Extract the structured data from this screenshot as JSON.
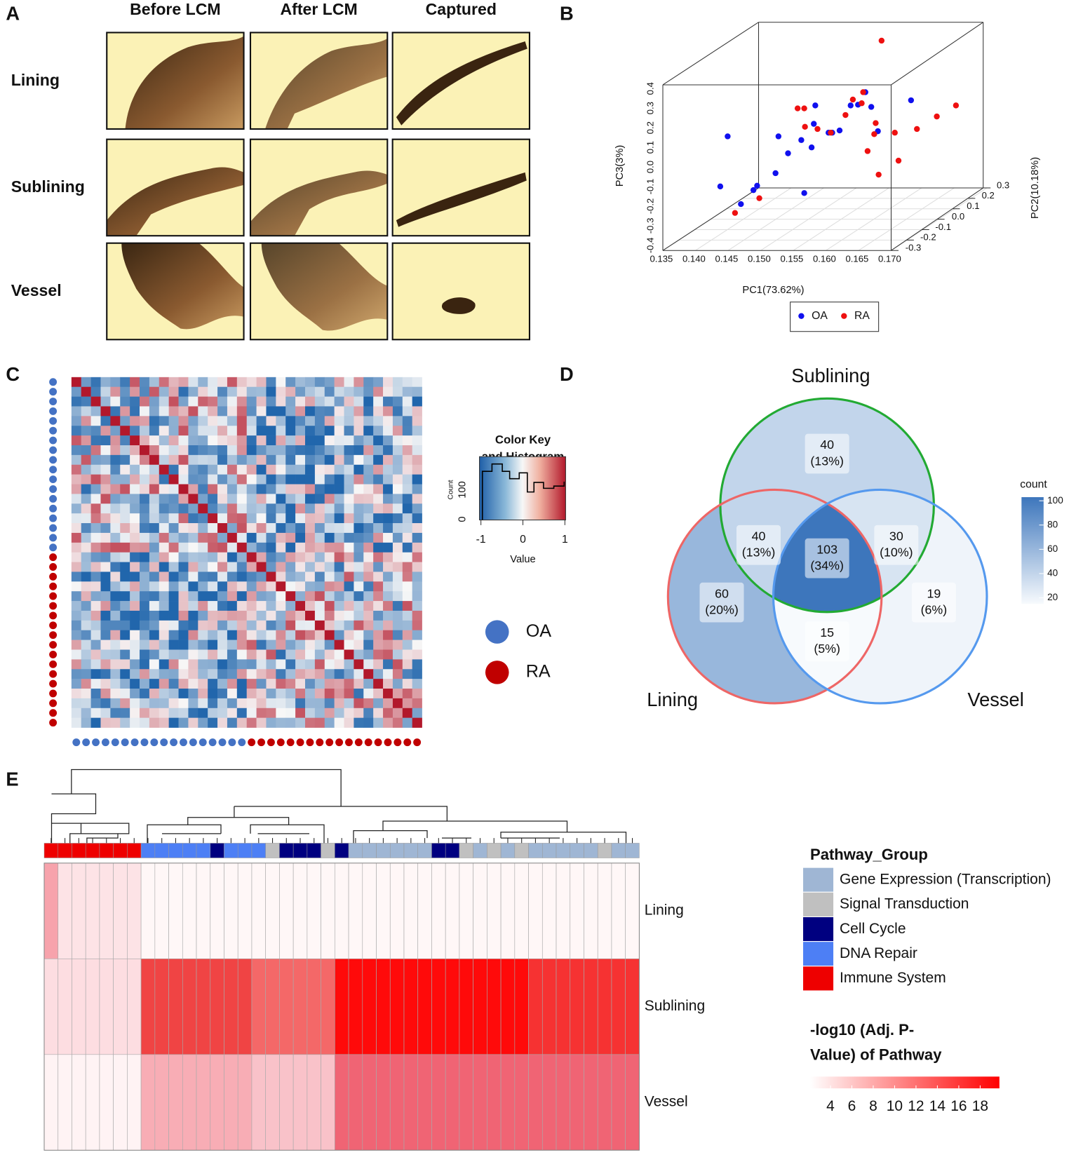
{
  "panels": {
    "a": {
      "label": "A",
      "columns": [
        "Before LCM",
        "After LCM",
        "Captured"
      ],
      "rows": [
        "Lining",
        "Sublining",
        "Vessel"
      ]
    },
    "b": {
      "label": "B",
      "x_label": "PC1(73.62%)",
      "y_label": "PC2(10.18%)",
      "z_label": "PC3(3%)",
      "xticks": [
        0.135,
        0.14,
        0.145,
        0.15,
        0.155,
        0.16,
        0.165,
        0.17
      ],
      "xtick_labels": [
        "0.135",
        "0.140",
        "0.145",
        "0.150",
        "0.155",
        "0.160",
        "0.165",
        "0.170"
      ],
      "yticks": [
        -0.3,
        -0.2,
        -0.1,
        {
          "value": 0,
          "label": "0.0"
        },
        0.1,
        0.2,
        0.3
      ],
      "zticks": [
        -0.4,
        -0.3,
        -0.2,
        -0.1,
        {
          "value": 0,
          "label": "0.0"
        },
        0.1,
        0.2,
        0.3,
        0.4
      ],
      "legend": [
        {
          "name": "OA",
          "color": "#1010ee"
        },
        {
          "name": "RA",
          "color": "#ee1010"
        }
      ]
    },
    "c": {
      "label": "C",
      "key_title": [
        "Color Key",
        "and Histogram"
      ],
      "count_label": "Count",
      "count_ticks": [
        0,
        100
      ],
      "value_ticks": [
        -1,
        0,
        1
      ],
      "value_label": "Value",
      "legend": [
        {
          "name": "OA",
          "color": "#4472c4"
        },
        {
          "name": "RA",
          "color": "#c00000"
        }
      ]
    },
    "d": {
      "label": "D",
      "sets": [
        "Sublining",
        "Lining",
        "Vessel"
      ],
      "regions": [
        {
          "count": 40,
          "percent": 13,
          "percent_label": "(13%)"
        },
        {
          "count": 60,
          "percent": 20,
          "percent_label": "(20%)"
        },
        {
          "count": 19,
          "percent": 6,
          "percent_label": "(6%)"
        },
        {
          "count": 40,
          "percent": 13,
          "percent_label": "(13%)"
        },
        {
          "count": 30,
          "percent": 10,
          "percent_label": "(10%)"
        },
        {
          "count": 15,
          "percent": 5,
          "percent_label": "(5%)"
        },
        {
          "count": 103,
          "percent": 34,
          "percent_label": "(34%)"
        }
      ],
      "legend_title": "count",
      "legend_ticks": [
        20,
        40,
        60,
        80,
        100
      ],
      "legend_lim": [
        15,
        103
      ],
      "color_low": "#f7fafd",
      "color_high": "#3d76bc"
    },
    "e": {
      "label": "E",
      "rows": [
        "Lining",
        "Sublining",
        "Vessel"
      ],
      "group_title": "Pathway_Group",
      "groups": [
        {
          "name": "Gene Expression (Transcription)",
          "color": "#9fb6d4"
        },
        {
          "name": "Signal Transduction",
          "color": "#c0c0c0"
        },
        {
          "name": "Cell Cycle",
          "color": "#000080"
        },
        {
          "name": "DNA Repair",
          "color": "#4d7ff5"
        },
        {
          "name": "Immune System",
          "color": "#ee0000"
        }
      ],
      "scale_title": [
        "-log10 (Adj. P-",
        "Value) of Pathway"
      ],
      "scale_ticks": [
        4,
        6,
        8,
        10,
        12,
        14,
        16,
        18
      ],
      "scale_lim": [
        2.1,
        19.8
      ]
    }
  }
}
